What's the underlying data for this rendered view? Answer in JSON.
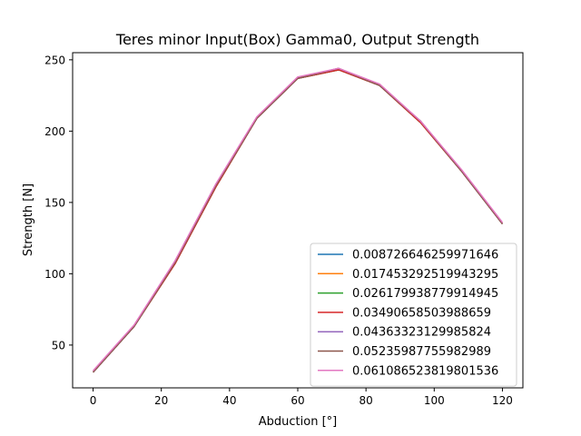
{
  "chart_data": {
    "type": "line",
    "title": "Teres minor Input(Box) Gamma0, Output Strength",
    "xlabel": "Abduction [°]",
    "ylabel": "Strength [N]",
    "xlim": [
      -6,
      126
    ],
    "ylim": [
      20,
      255
    ],
    "xticks": [
      0,
      20,
      40,
      60,
      80,
      100,
      120
    ],
    "yticks": [
      50,
      100,
      150,
      200,
      250
    ],
    "grid": false,
    "legend_position": "lower right",
    "x": [
      0,
      12,
      24,
      36,
      48,
      60,
      72,
      84,
      96,
      108,
      120
    ],
    "series": [
      {
        "name": "0.008726646259971646",
        "color": "#1f77b4",
        "values": [
          31,
          63,
          107,
          161,
          209,
          237,
          243,
          232,
          206,
          172,
          135
        ]
      },
      {
        "name": "0.017453292519943295",
        "color": "#ff7f0e",
        "values": [
          31,
          63,
          107,
          161,
          209,
          237,
          243,
          232,
          206,
          172,
          135
        ]
      },
      {
        "name": "0.026179938779914945",
        "color": "#2ca02c",
        "values": [
          31,
          63,
          107,
          161,
          209,
          237,
          243,
          232,
          206,
          172,
          135
        ]
      },
      {
        "name": "0.03490658503988659",
        "color": "#d62728",
        "values": [
          31,
          63,
          107,
          161,
          209,
          237,
          243,
          232,
          206,
          172,
          135
        ]
      },
      {
        "name": "0.04363323129985824",
        "color": "#9467bd",
        "values": [
          31,
          63,
          108,
          162,
          209,
          237,
          244,
          232,
          207,
          172,
          135
        ]
      },
      {
        "name": "0.05235987755982989",
        "color": "#8c564b",
        "values": [
          31,
          63,
          108,
          162,
          209,
          237,
          244,
          232,
          207,
          172,
          135
        ]
      },
      {
        "name": "0.061086523819801536",
        "color": "#e377c2",
        "values": [
          32,
          64,
          109,
          163,
          210,
          238,
          244,
          233,
          207,
          173,
          136
        ]
      }
    ]
  }
}
